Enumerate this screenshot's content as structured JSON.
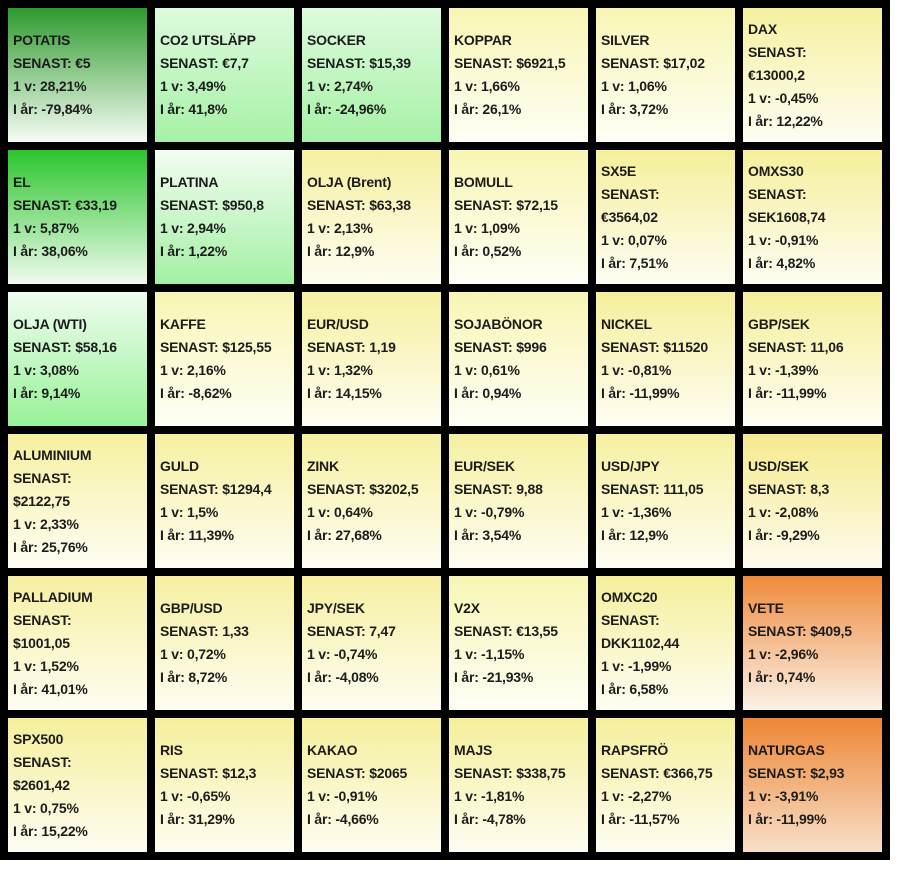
{
  "chart_data": {
    "type": "heatmap",
    "layout": "6x6 grid of instrument tiles, vertical color gradient per tile",
    "labels": {
      "last": "SENAST:",
      "week": "1 v:",
      "year": "I år:"
    },
    "tiles": [
      {
        "name": "POTATIS",
        "last": "€5",
        "week": "28,21%",
        "year": "-79,84%",
        "color_top": "#2D9A2D",
        "color_bottom": "#F6FCF4",
        "wrap": false
      },
      {
        "name": "CO2 UTSLÄPP",
        "last": "€7,7",
        "week": "3,49%",
        "year": "41,8%",
        "color_top": "#DDFBDD",
        "color_bottom": "#A6F1A6",
        "wrap": false
      },
      {
        "name": "SOCKER",
        "last": "$15,39",
        "week": "2,74%",
        "year": "-24,96%",
        "color_top": "#DDFBDD",
        "color_bottom": "#A6F1A6",
        "wrap": false
      },
      {
        "name": "KOPPAR",
        "last": "$6921,5",
        "week": "1,66%",
        "year": "26,1%",
        "color_top": "#F8F6B4",
        "color_bottom": "#FEFEF5",
        "wrap": false
      },
      {
        "name": "SILVER",
        "last": "$17,02",
        "week": "1,06%",
        "year": "3,72%",
        "color_top": "#F8F6B4",
        "color_bottom": "#FEFEF5",
        "wrap": false
      },
      {
        "name": "DAX",
        "last": "€13000,2",
        "week": "-0,45%",
        "year": "12,22%",
        "color_top": "#F6F0A0",
        "color_bottom": "#FEFDF2",
        "wrap": true
      },
      {
        "name": "EL",
        "last": "€33,19",
        "week": "5,87%",
        "year": "38,06%",
        "color_top": "#2BC52B",
        "color_bottom": "#EFFBEF",
        "wrap": false
      },
      {
        "name": "PLATINA",
        "last": "$950,8",
        "week": "2,94%",
        "year": "1,22%",
        "color_top": "#F2FCF2",
        "color_bottom": "#A3F0A3",
        "wrap": false
      },
      {
        "name": "OLJA (Brent)",
        "last": "$63,38",
        "week": "2,13%",
        "year": "12,9%",
        "color_top": "#F6F0A0",
        "color_bottom": "#FEFDF2",
        "wrap": false
      },
      {
        "name": "BOMULL",
        "last": "$72,15",
        "week": "1,09%",
        "year": "0,52%",
        "color_top": "#F8F6B4",
        "color_bottom": "#FEFEF5",
        "wrap": false
      },
      {
        "name": "SX5E",
        "last": "€3564,02",
        "week": "0,07%",
        "year": "7,51%",
        "color_top": "#F5EF9B",
        "color_bottom": "#FEFDF2",
        "wrap": true
      },
      {
        "name": "OMXS30",
        "last": "SEK1608,74",
        "week": "-0,91%",
        "year": "4,82%",
        "color_top": "#F5EF9B",
        "color_bottom": "#FEFDF2",
        "wrap": true
      },
      {
        "name": "OLJA (WTI)",
        "last": "$58,16",
        "week": "3,08%",
        "year": "9,14%",
        "color_top": "#F0FCF0",
        "color_bottom": "#98F298",
        "wrap": false
      },
      {
        "name": "KAFFE",
        "last": "$125,55",
        "week": "2,16%",
        "year": "-8,62%",
        "color_top": "#F8F6B4",
        "color_bottom": "#FEFEF5",
        "wrap": false
      },
      {
        "name": "EUR/USD",
        "last": "1,19",
        "week": "1,32%",
        "year": "14,15%",
        "color_top": "#F6F0A0",
        "color_bottom": "#FEFDF2",
        "wrap": false
      },
      {
        "name": "SOJABÖNOR",
        "last": "$996",
        "week": "0,61%",
        "year": "0,94%",
        "color_top": "#F8F6B4",
        "color_bottom": "#FEFEF5",
        "wrap": false
      },
      {
        "name": "NICKEL",
        "last": "$11520",
        "week": "-0,81%",
        "year": "-11,99%",
        "color_top": "#F5EF9B",
        "color_bottom": "#FEFDF2",
        "wrap": false
      },
      {
        "name": "GBP/SEK",
        "last": "11,06",
        "week": "-1,39%",
        "year": "-11,99%",
        "color_top": "#F5EF9B",
        "color_bottom": "#FEFDF2",
        "wrap": false
      },
      {
        "name": "ALUMINIUM",
        "last": "$2122,75",
        "week": "2,33%",
        "year": "25,76%",
        "color_top": "#F6F0A0",
        "color_bottom": "#FEFDF2",
        "wrap": true
      },
      {
        "name": "GULD",
        "last": "$1294,4",
        "week": "1,5%",
        "year": "11,39%",
        "color_top": "#F6F0A0",
        "color_bottom": "#FEFDF2",
        "wrap": false
      },
      {
        "name": "ZINK",
        "last": "$3202,5",
        "week": "0,64%",
        "year": "27,68%",
        "color_top": "#F6F0A0",
        "color_bottom": "#FEFDF2",
        "wrap": false
      },
      {
        "name": "EUR/SEK",
        "last": "9,88",
        "week": "-0,79%",
        "year": "3,54%",
        "color_top": "#F6F0A0",
        "color_bottom": "#FEFDF2",
        "wrap": false
      },
      {
        "name": "USD/JPY",
        "last": "111,05",
        "week": "-1,36%",
        "year": "12,9%",
        "color_top": "#F6F0A0",
        "color_bottom": "#FEFDF2",
        "wrap": false
      },
      {
        "name": "USD/SEK",
        "last": "8,3",
        "week": "-2,08%",
        "year": "-9,29%",
        "color_top": "#F5EA8D",
        "color_bottom": "#FEFBEE",
        "wrap": false
      },
      {
        "name": "PALLADIUM",
        "last": "$1001,05",
        "week": "1,52%",
        "year": "41,01%",
        "color_top": "#F6F0A0",
        "color_bottom": "#FEFDF2",
        "wrap": true
      },
      {
        "name": "GBP/USD",
        "last": "1,33",
        "week": "0,72%",
        "year": "8,72%",
        "color_top": "#F6F0A0",
        "color_bottom": "#FEFDF2",
        "wrap": false
      },
      {
        "name": "JPY/SEK",
        "last": "7,47",
        "week": "-0,74%",
        "year": "-4,08%",
        "color_top": "#F6F0A0",
        "color_bottom": "#FEFDF2",
        "wrap": false
      },
      {
        "name": "V2X",
        "last": "€13,55",
        "week": "-1,15%",
        "year": "-21,93%",
        "color_top": "#F8F6B4",
        "color_bottom": "#FEFEF5",
        "wrap": false
      },
      {
        "name": "OMXC20",
        "last": "DKK1102,44",
        "week": "-1,99%",
        "year": "6,58%",
        "color_top": "#F5EF9B",
        "color_bottom": "#FEFDF2",
        "wrap": true
      },
      {
        "name": "VETE",
        "last": "$409,5",
        "week": "-2,96%",
        "year": "0,74%",
        "color_top": "#EF8B3B",
        "color_bottom": "#FBF1E7",
        "wrap": false
      },
      {
        "name": "SPX500",
        "last": "$2601,42",
        "week": "0,75%",
        "year": "15,22%",
        "color_top": "#F5EF9B",
        "color_bottom": "#FEFDF2",
        "wrap": true
      },
      {
        "name": "RIS",
        "last": "$12,3",
        "week": "-0,65%",
        "year": "31,29%",
        "color_top": "#F5EF9B",
        "color_bottom": "#FEFDF2",
        "wrap": false
      },
      {
        "name": "KAKAO",
        "last": "$2065",
        "week": "-0,91%",
        "year": "-4,66%",
        "color_top": "#F5EF9B",
        "color_bottom": "#FEFDF2",
        "wrap": false
      },
      {
        "name": "MAJS",
        "last": "$338,75",
        "week": "-1,81%",
        "year": "-4,78%",
        "color_top": "#F5EF9B",
        "color_bottom": "#FEFDF2",
        "wrap": false
      },
      {
        "name": "RAPSFRÖ",
        "last": "€366,75",
        "week": "-2,27%",
        "year": "-11,57%",
        "color_top": "#F5EF9B",
        "color_bottom": "#FEFDF2",
        "wrap": false
      },
      {
        "name": "NATURGAS",
        "last": "$2,93",
        "week": "-3,91%",
        "year": "-11,99%",
        "color_top": "#ED8634",
        "color_bottom": "#F8DFC9",
        "wrap": false
      }
    ]
  }
}
